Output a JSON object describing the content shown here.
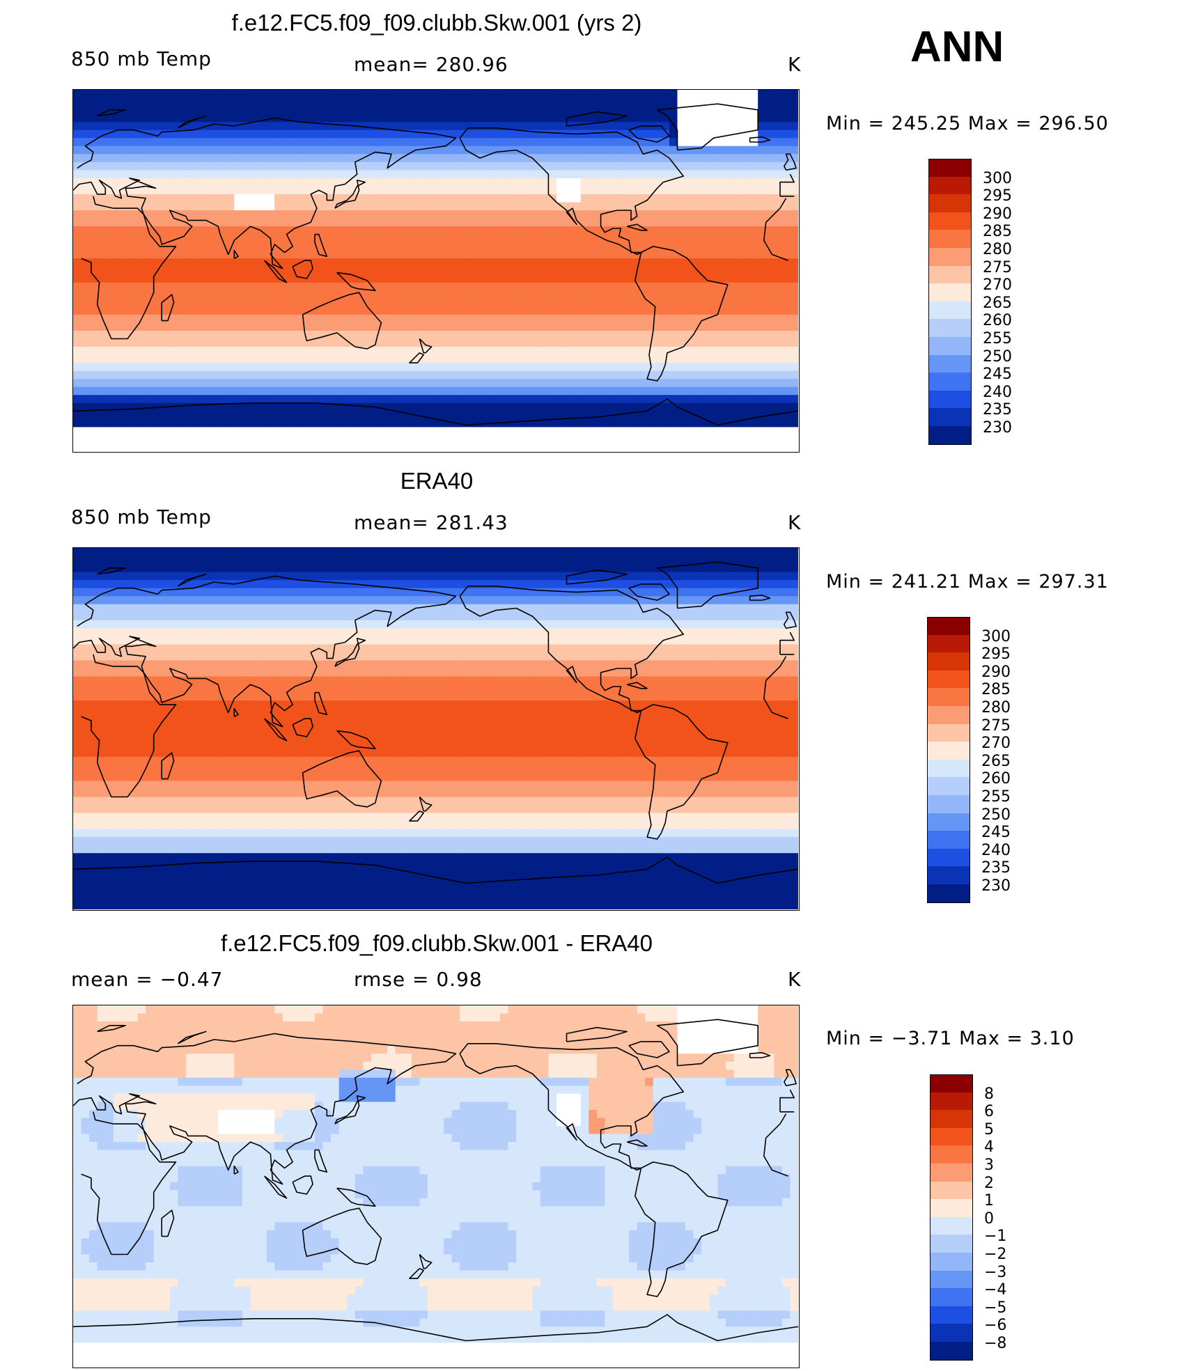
{
  "season": "ANN",
  "panels": [
    {
      "title": "f.e12.FC5.f09_f09.clubb.Skw.001 (yrs 2)",
      "left_label": "850 mb Temp",
      "center_label": "mean=  280.96",
      "unit": "K",
      "min_max": "Min  =  245.25  Max  =  296.50",
      "field": "model"
    },
    {
      "title": "ERA40",
      "left_label": "850 mb Temp",
      "center_label": "mean=  281.43",
      "unit": "K",
      "min_max": "Min  =  241.21  Max  =  297.31",
      "field": "obs"
    },
    {
      "title": "f.e12.FC5.f09_f09.clubb.Skw.001 - ERA40",
      "left_label": "mean  =    −0.47",
      "center_label": "rmse  =     0.98",
      "unit": "K",
      "min_max": "Min  =    −3.71  Max  =      3.10",
      "field": "diff"
    }
  ],
  "colorbar_abs": {
    "labels": [
      "300",
      "295",
      "290",
      "285",
      "280",
      "275",
      "270",
      "265",
      "260",
      "255",
      "250",
      "245",
      "240",
      "235",
      "230"
    ],
    "colors": [
      "#8b0000",
      "#b81a06",
      "#d83507",
      "#f2531a",
      "#f97541",
      "#fb9c74",
      "#fdc4a5",
      "#feeadb",
      "#d7e7fb",
      "#b5cffa",
      "#93b6f9",
      "#6595f5",
      "#3f73f2",
      "#1c4fe2",
      "#0a33b5",
      "#001e85"
    ]
  },
  "colorbar_diff": {
    "labels": [
      "8",
      "6",
      "5",
      "4",
      "3",
      "2",
      "1",
      "0",
      "−1",
      "−2",
      "−3",
      "−4",
      "−5",
      "−6",
      "−8"
    ],
    "colors": [
      "#8b0000",
      "#b81a06",
      "#d83507",
      "#f2531a",
      "#f97541",
      "#fb9c74",
      "#fdc4a5",
      "#feeadb",
      "#d7e7fb",
      "#b5cffa",
      "#93b6f9",
      "#6595f5",
      "#3f73f2",
      "#1c4fe2",
      "#0a33b5",
      "#001e85"
    ]
  }
}
